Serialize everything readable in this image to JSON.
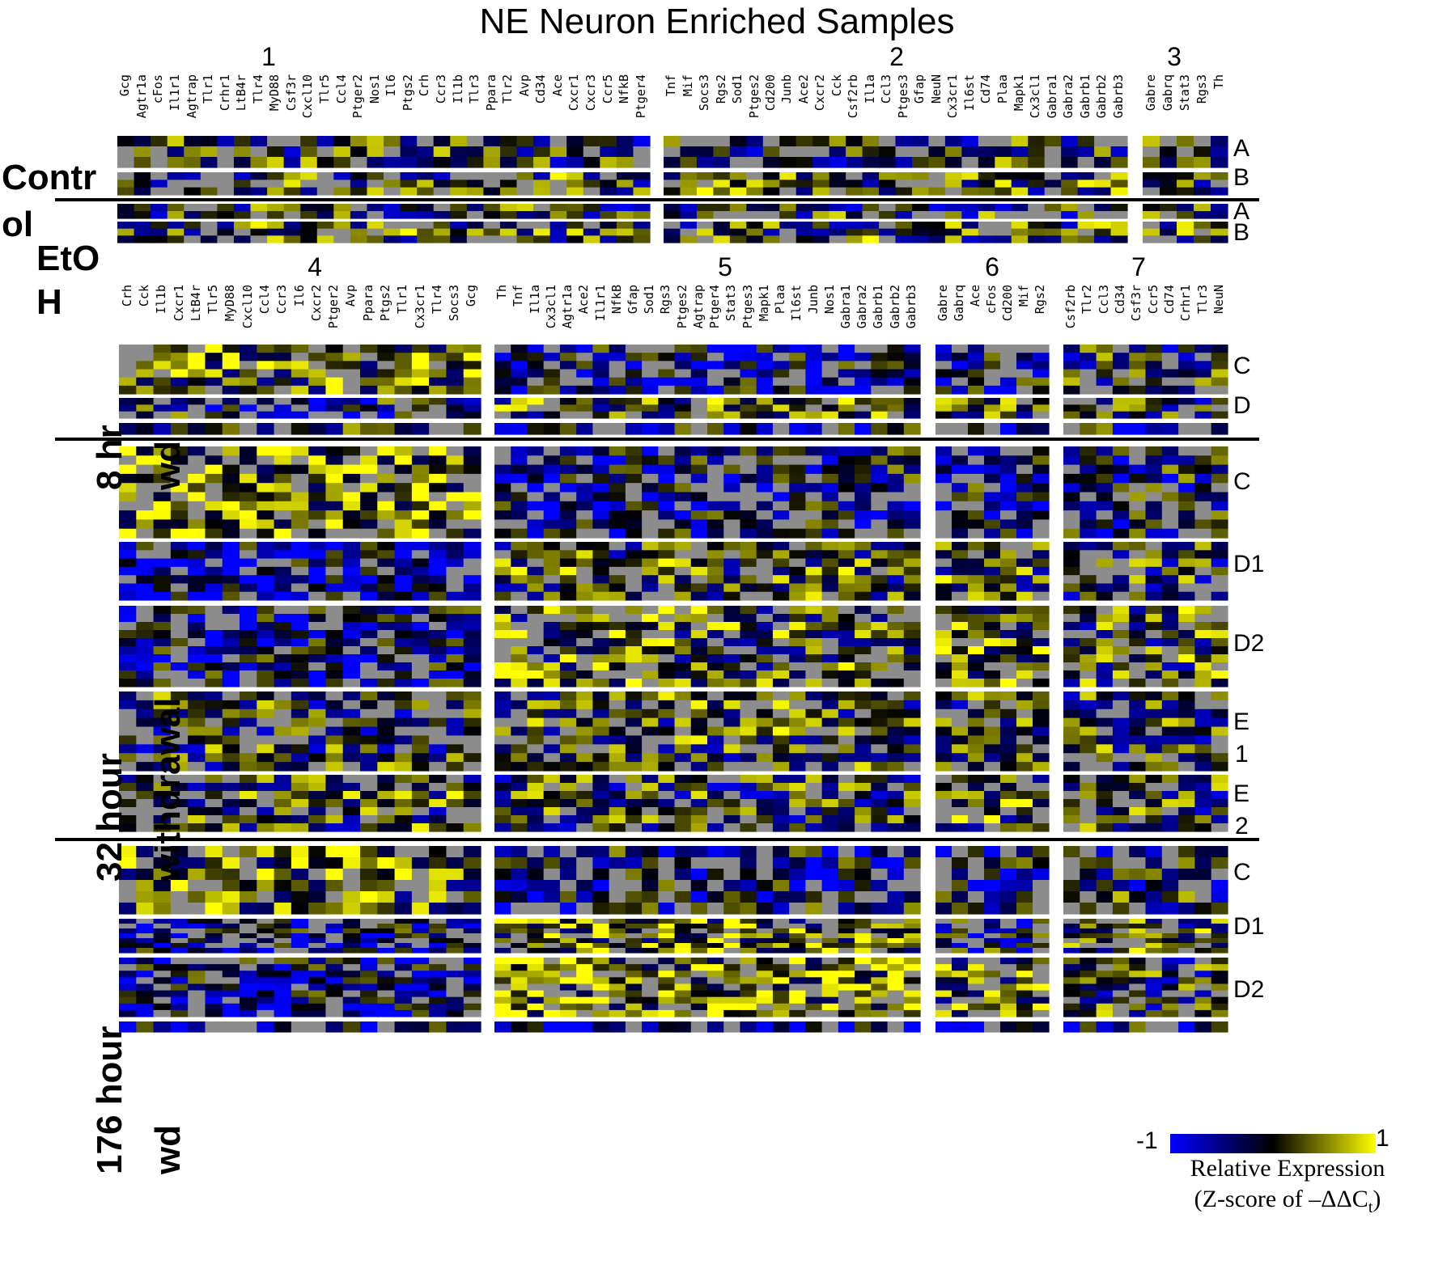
{
  "chart_data": {
    "type": "heatmap",
    "title": "NE Neuron Enriched Samples",
    "value_range": [
      -1,
      1
    ],
    "colorscale": {
      "low": "#0000ff",
      "mid": "#000000",
      "high": "#ffff00",
      "missing": "#8c8c8c"
    },
    "colorbar": {
      "min_label": "-1",
      "max_label": "1",
      "title_line1": "Relative Expression",
      "title_line2": "(Z-score of –ΔΔC",
      "title_sub": "t",
      "title_end": ")"
    },
    "top_groups": [
      {
        "id": "1",
        "genes": [
          "Gcg",
          "Agtr1a",
          "cFos",
          "Il1r1",
          "Agtrap",
          "Tlr1",
          "Crhr1",
          "LtB4r",
          "Tlr4",
          "MyD88",
          "Csf3r",
          "Cxcl10",
          "Tlr5",
          "Ccl4",
          "Ptger2",
          "Nos1",
          "Il6",
          "Ptgs2",
          "Crh",
          "Ccr3",
          "Il1b",
          "Tlr3",
          "Ppara",
          "Tlr2",
          "Avp",
          "Cd34",
          "Ace",
          "Cxcr1",
          "Cxcr3",
          "Ccr5",
          "NfkB",
          "Ptger4"
        ]
      },
      {
        "id": "2",
        "genes": [
          "Tnf",
          "Mif",
          "Socs3",
          "Rgs2",
          "Sod1",
          "Ptges2",
          "Cd200",
          "Junb",
          "Ace2",
          "Cxcr2",
          "Cck",
          "Csf2rb",
          "Il1a",
          "Ccl3",
          "Ptges3",
          "Gfap",
          "NeuN",
          "Cx3cr1",
          "Il6st",
          "Cd74",
          "Plaa",
          "Mapk1",
          "Cx3cl1",
          "Gabra1",
          "Gabra2",
          "Gabrb1",
          "Gabrb2",
          "Gabrb3"
        ]
      },
      {
        "id": "3",
        "genes": [
          "Gabre",
          "Gabrq",
          "Stat3",
          "Rgs3",
          "Th"
        ]
      }
    ],
    "bottom_groups": [
      {
        "id": "4",
        "genes": [
          "Crh",
          "Cck",
          "Il1b",
          "Cxcr1",
          "LtB4r",
          "Tlr5",
          "MyD88",
          "Cxcl10",
          "Ccl4",
          "Ccr3",
          "Il6",
          "Cxcr2",
          "Ptger2",
          "Avp",
          "Ppara",
          "Ptgs2",
          "Tlr1",
          "Cx3cr1",
          "Tlr4",
          "Socs3",
          "Gcg"
        ]
      },
      {
        "id": "5",
        "genes": [
          "Th",
          "Tnf",
          "Il1a",
          "Cx3cl1",
          "Agtr1a",
          "Ace2",
          "Il1r1",
          "NfkB",
          "Gfap",
          "Sod1",
          "Rgs3",
          "Ptges2",
          "Agtrap",
          "Ptger4",
          "Stat3",
          "Ptges3",
          "Mapk1",
          "Plaa",
          "Il6st",
          "Junb",
          "Nos1",
          "Gabra1",
          "Gabra2",
          "Gabrb1",
          "Gabrb2",
          "Gabrb3"
        ]
      },
      {
        "id": "6",
        "genes": [
          "Gabre",
          "Gabrq",
          "Ace",
          "cFos",
          "Cd200",
          "Mif",
          "Rgs2"
        ]
      },
      {
        "id": "7",
        "genes": [
          "Csf2rb",
          "Tlr2",
          "Ccl3",
          "Cd34",
          "Csf3r",
          "Ccr5",
          "Cd74",
          "Crhr1",
          "Tlr3",
          "NeuN"
        ]
      }
    ],
    "conditions": [
      {
        "label_lines": [
          "Contr",
          "ol"
        ],
        "rows": [
          {
            "label": "A",
            "n": 3
          },
          {
            "label": "B",
            "n": 3
          }
        ]
      },
      {
        "label_lines": [
          "EtO",
          "H"
        ],
        "rows": [
          {
            "label": "A",
            "n": 2
          },
          {
            "label": "B",
            "n": 3
          }
        ]
      },
      {
        "label_lines": [
          "8 hr",
          "wd"
        ],
        "rows": [
          {
            "label": "C",
            "n": 6
          },
          {
            "label": "D",
            "n": 3
          },
          {
            "label": "",
            "n": 1
          }
        ]
      },
      {
        "label_lines": [
          "32 hour",
          "withdrawal"
        ],
        "rows": [
          {
            "label": "C",
            "n": 10
          },
          {
            "label": "D1",
            "n": 7
          },
          {
            "label": "D2",
            "n": 10
          },
          {
            "label": "E 1",
            "n": 9
          },
          {
            "label": "E 2",
            "n": 7
          }
        ]
      },
      {
        "label_lines": [
          "176 hour",
          "wd"
        ],
        "rows": [
          {
            "label": "C",
            "n": 6
          },
          {
            "label": "D1",
            "n": 7
          },
          {
            "label": "D2",
            "n": 9
          },
          {
            "label": "",
            "n": 1
          }
        ]
      }
    ]
  }
}
